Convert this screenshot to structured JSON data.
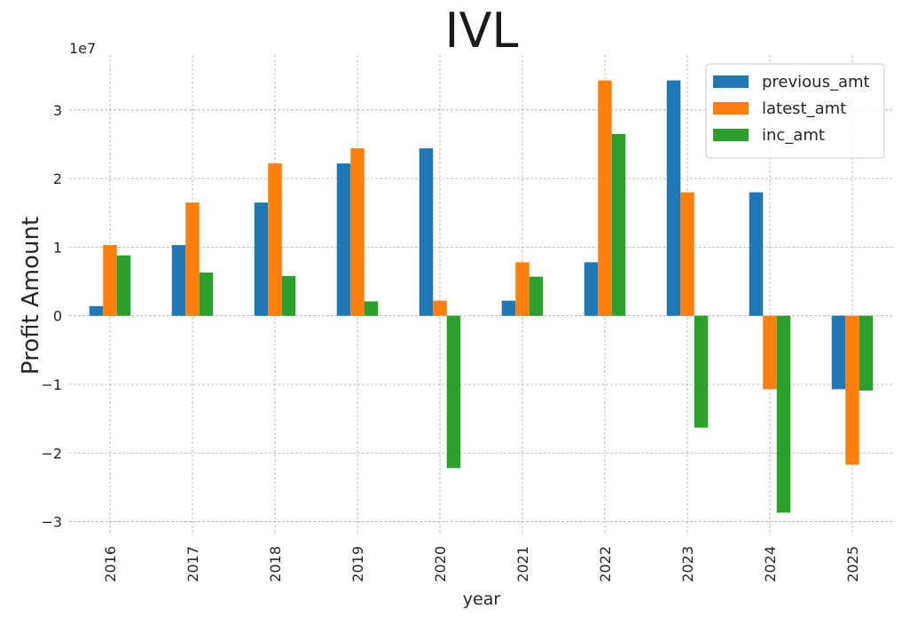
{
  "chart_data": {
    "type": "bar",
    "title": "IVL",
    "xlabel": "year",
    "ylabel": "Profit Amount",
    "y_scale_label": "1e7",
    "y_scale": 10000000,
    "ylim": [
      -32000000,
      38000000
    ],
    "yticks": [
      -30000000,
      -20000000,
      -10000000,
      0,
      10000000,
      20000000,
      30000000
    ],
    "ytick_labels": [
      "−3",
      "−2",
      "−1",
      "0",
      "1",
      "2",
      "3"
    ],
    "grid": true,
    "legend_position": "top-right",
    "categories": [
      "2016",
      "2017",
      "2018",
      "2019",
      "2020",
      "2021",
      "2022",
      "2023",
      "2024",
      "2025"
    ],
    "series": [
      {
        "name": "previous_amt",
        "color": "#1f77b4",
        "values": [
          1400000,
          10300000,
          16500000,
          22200000,
          24400000,
          2200000,
          7800000,
          34300000,
          18000000,
          -10700000
        ]
      },
      {
        "name": "latest_amt",
        "color": "#ff7f0e",
        "values": [
          10300000,
          16500000,
          22200000,
          24400000,
          2200000,
          7800000,
          34300000,
          18000000,
          -10700000,
          -21700000
        ]
      },
      {
        "name": "inc_amt",
        "color": "#2ca02c",
        "values": [
          8800000,
          6300000,
          5800000,
          2100000,
          -22200000,
          5700000,
          26500000,
          -16300000,
          -28700000,
          -10900000
        ]
      }
    ]
  }
}
